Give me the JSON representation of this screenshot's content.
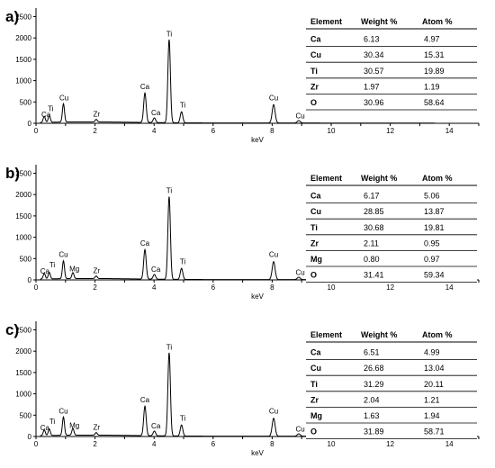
{
  "chart_data": [
    {
      "type": "line",
      "panel_label": "a)",
      "xlabel": "keV",
      "ylabel": "",
      "xlim": [
        0,
        15
      ],
      "ylim": [
        0,
        2700
      ],
      "x_ticks": [
        0,
        2,
        4,
        6,
        8,
        10,
        12,
        14
      ],
      "y_ticks": [
        0,
        500,
        1000,
        1500,
        2000,
        2500
      ],
      "grid": false,
      "series": [
        {
          "peaks": [
            {
              "x": 0.28,
              "y": 140,
              "w": 0.05
            },
            {
              "x": 0.45,
              "y": 160,
              "w": 0.05
            },
            {
              "x": 0.93,
              "y": 430,
              "w": 0.05
            },
            {
              "x": 2.04,
              "y": 60,
              "w": 0.05
            },
            {
              "x": 3.69,
              "y": 690,
              "w": 0.06
            },
            {
              "x": 4.01,
              "y": 110,
              "w": 0.06
            },
            {
              "x": 4.51,
              "y": 1950,
              "w": 0.06
            },
            {
              "x": 4.93,
              "y": 260,
              "w": 0.06
            },
            {
              "x": 8.05,
              "y": 430,
              "w": 0.07
            },
            {
              "x": 8.9,
              "y": 55,
              "w": 0.07
            }
          ]
        }
      ],
      "annotations": [
        {
          "text": "Ca",
          "x": 0.34,
          "y": 150
        },
        {
          "text": "Ti",
          "x": 0.5,
          "y": 290
        },
        {
          "text": "Cu",
          "x": 0.95,
          "y": 540
        },
        {
          "text": "Zr",
          "x": 2.05,
          "y": 160
        },
        {
          "text": "Ca",
          "x": 3.69,
          "y": 800
        },
        {
          "text": "Ca",
          "x": 4.06,
          "y": 190
        },
        {
          "text": "Ti",
          "x": 4.51,
          "y": 2040
        },
        {
          "text": "Ti",
          "x": 4.97,
          "y": 370
        },
        {
          "text": "Cu",
          "x": 8.05,
          "y": 540
        },
        {
          "text": "Cu",
          "x": 8.95,
          "y": 120
        }
      ],
      "table": {
        "headers": [
          "Element",
          "Weight %",
          "Atom %"
        ],
        "rows": [
          [
            "Ca",
            "6.13",
            "4.97"
          ],
          [
            "Cu",
            "30.34",
            "15.31"
          ],
          [
            "Ti",
            "30.57",
            "19.89"
          ],
          [
            "Zr",
            "1.97",
            "1.19"
          ],
          [
            "O",
            "30.96",
            "58.64"
          ]
        ]
      }
    },
    {
      "type": "line",
      "panel_label": "b)",
      "xlabel": "keV",
      "ylabel": "",
      "xlim": [
        0,
        15
      ],
      "ylim": [
        0,
        2700
      ],
      "x_ticks": [
        0,
        2,
        4,
        6,
        8,
        10,
        12,
        14
      ],
      "y_ticks": [
        0,
        500,
        1000,
        1500,
        2000,
        2500
      ],
      "grid": false,
      "series": [
        {
          "peaks": [
            {
              "x": 0.28,
              "y": 130,
              "w": 0.05
            },
            {
              "x": 0.45,
              "y": 150,
              "w": 0.05
            },
            {
              "x": 0.93,
              "y": 420,
              "w": 0.05
            },
            {
              "x": 1.25,
              "y": 140,
              "w": 0.05
            },
            {
              "x": 2.04,
              "y": 60,
              "w": 0.05
            },
            {
              "x": 3.69,
              "y": 690,
              "w": 0.06
            },
            {
              "x": 4.01,
              "y": 110,
              "w": 0.06
            },
            {
              "x": 4.51,
              "y": 1940,
              "w": 0.06
            },
            {
              "x": 4.93,
              "y": 260,
              "w": 0.06
            },
            {
              "x": 8.05,
              "y": 420,
              "w": 0.07
            },
            {
              "x": 8.9,
              "y": 55,
              "w": 0.07
            }
          ]
        }
      ],
      "annotations": [
        {
          "text": "Ca",
          "x": 0.3,
          "y": 150
        },
        {
          "text": "Ti",
          "x": 0.55,
          "y": 300
        },
        {
          "text": "Cu",
          "x": 0.93,
          "y": 540
        },
        {
          "text": "Mg",
          "x": 1.3,
          "y": 200
        },
        {
          "text": "Zr",
          "x": 2.05,
          "y": 160
        },
        {
          "text": "Ca",
          "x": 3.69,
          "y": 800
        },
        {
          "text": "Ca",
          "x": 4.06,
          "y": 190
        },
        {
          "text": "Ti",
          "x": 4.51,
          "y": 2040
        },
        {
          "text": "Ti",
          "x": 4.97,
          "y": 370
        },
        {
          "text": "Cu",
          "x": 8.05,
          "y": 540
        },
        {
          "text": "Cu",
          "x": 8.95,
          "y": 120
        }
      ],
      "table": {
        "headers": [
          "Element",
          "Weight %",
          "Atom %"
        ],
        "rows": [
          [
            "Ca",
            "6.17",
            "5.06"
          ],
          [
            "Cu",
            "28.85",
            "13.87"
          ],
          [
            "Ti",
            "30.68",
            "19.81"
          ],
          [
            "Zr",
            "2.11",
            "0.95"
          ],
          [
            "Mg",
            "0.80",
            "0.97"
          ],
          [
            "O",
            "31.41",
            "59.34"
          ]
        ]
      }
    },
    {
      "type": "line",
      "panel_label": "c)",
      "xlabel": "keV",
      "ylabel": "",
      "xlim": [
        0,
        15
      ],
      "ylim": [
        0,
        2700
      ],
      "x_ticks": [
        0,
        2,
        4,
        6,
        8,
        10,
        12,
        14
      ],
      "y_ticks": [
        0,
        500,
        1000,
        1500,
        2000,
        2500
      ],
      "grid": false,
      "series": [
        {
          "peaks": [
            {
              "x": 0.28,
              "y": 130,
              "w": 0.05
            },
            {
              "x": 0.45,
              "y": 150,
              "w": 0.05
            },
            {
              "x": 0.93,
              "y": 430,
              "w": 0.05
            },
            {
              "x": 1.25,
              "y": 160,
              "w": 0.05
            },
            {
              "x": 2.04,
              "y": 60,
              "w": 0.05
            },
            {
              "x": 3.69,
              "y": 690,
              "w": 0.06
            },
            {
              "x": 4.01,
              "y": 110,
              "w": 0.06
            },
            {
              "x": 4.51,
              "y": 1950,
              "w": 0.06
            },
            {
              "x": 4.93,
              "y": 260,
              "w": 0.06
            },
            {
              "x": 8.05,
              "y": 420,
              "w": 0.07
            },
            {
              "x": 8.9,
              "y": 55,
              "w": 0.07
            }
          ]
        }
      ],
      "annotations": [
        {
          "text": "Ca",
          "x": 0.3,
          "y": 150
        },
        {
          "text": "Ti",
          "x": 0.55,
          "y": 300
        },
        {
          "text": "Cu",
          "x": 0.93,
          "y": 540
        },
        {
          "text": "Mg",
          "x": 1.3,
          "y": 200
        },
        {
          "text": "Zr",
          "x": 2.05,
          "y": 160
        },
        {
          "text": "Ca",
          "x": 3.69,
          "y": 800
        },
        {
          "text": "Ca",
          "x": 4.06,
          "y": 190
        },
        {
          "text": "Ti",
          "x": 4.51,
          "y": 2040
        },
        {
          "text": "Ti",
          "x": 4.97,
          "y": 370
        },
        {
          "text": "Cu",
          "x": 8.05,
          "y": 540
        },
        {
          "text": "Cu",
          "x": 8.95,
          "y": 120
        }
      ],
      "table": {
        "headers": [
          "Element",
          "Weight %",
          "Atom %"
        ],
        "rows": [
          [
            "Ca",
            "6.51",
            "4.99"
          ],
          [
            "Cu",
            "26.68",
            "13.04"
          ],
          [
            "Ti",
            "31.29",
            "20.11"
          ],
          [
            "Zr",
            "2.04",
            "1.21"
          ],
          [
            "Mg",
            "1.63",
            "1.94"
          ],
          [
            "O",
            "31.89",
            "58.71"
          ]
        ]
      }
    }
  ]
}
